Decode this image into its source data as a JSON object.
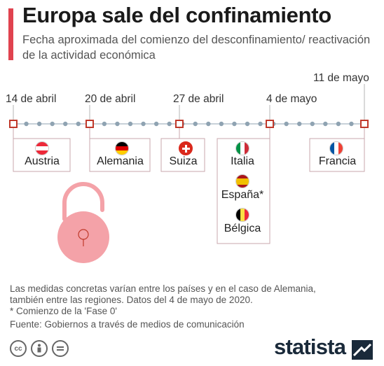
{
  "title": "Europa sale del confinamiento",
  "subtitle": "Fecha aproximada del comienzo del desconfinamiento/ reactivación de la actividad económica",
  "timeline": {
    "dates": [
      "14 de abril",
      "20 de abril",
      "27 de abril",
      "4 de mayo",
      "11 de mayo"
    ],
    "groups": [
      {
        "date": "14 de abril",
        "countries": [
          {
            "name": "Austria",
            "flag": "austria"
          }
        ]
      },
      {
        "date": "20 de abril",
        "countries": [
          {
            "name": "Alemania",
            "flag": "germany"
          }
        ]
      },
      {
        "date": "27 de abril",
        "countries": [
          {
            "name": "Suiza",
            "flag": "switzerland"
          }
        ]
      },
      {
        "date": "4 de mayo",
        "countries": [
          {
            "name": "Italia",
            "flag": "italy"
          },
          {
            "name": "España*",
            "flag": "spain"
          },
          {
            "name": "Bélgica",
            "flag": "belgium"
          }
        ]
      },
      {
        "date": "11 de mayo",
        "countries": [
          {
            "name": "Francia",
            "flag": "france"
          }
        ]
      }
    ]
  },
  "footnotes": {
    "line1": "Las medidas concretas varían entre los países y en el caso de Alemania,",
    "line2": "también entre las regiones. Datos del 4 de mayo de 2020.",
    "line3": "* Comienzo de la 'Fase 0'",
    "source": "Fuente: Gobiernos a través de medios de comunicación"
  },
  "license_icons": [
    "cc",
    "by",
    "nd"
  ],
  "brand": {
    "name": "statista"
  },
  "colors": {
    "accent": "#e0434f",
    "dots": "#8fa3b2",
    "lock": "#f4a2a8",
    "text": "#1a1a1a"
  }
}
